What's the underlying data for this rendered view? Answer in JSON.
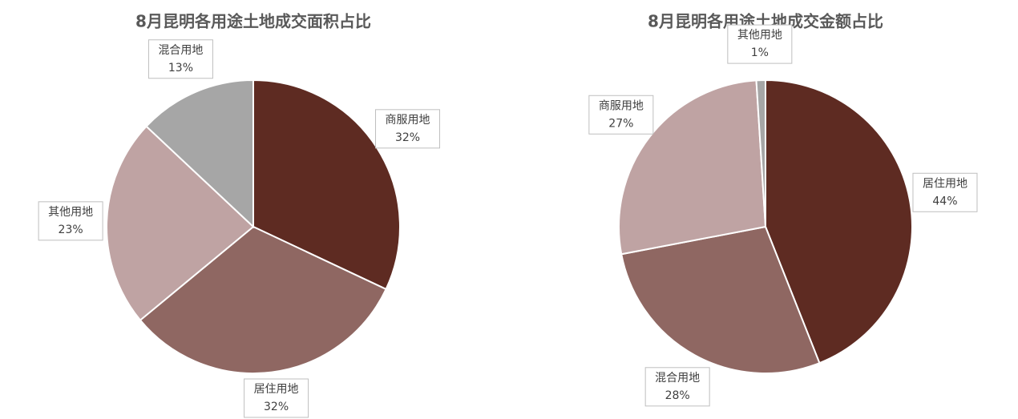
{
  "chart_data": [
    {
      "type": "pie",
      "title": "8月昆明各用途土地成交面积占比",
      "categories": [
        "商服用地",
        "居住用地",
        "其他用地",
        "混合用地"
      ],
      "values": [
        32,
        32,
        23,
        13
      ],
      "value_labels": [
        "32%",
        "32%",
        "23%",
        "13%"
      ],
      "colors": [
        "#5e2b22",
        "#8f6762",
        "#bfa3a3",
        "#a6a6a6"
      ]
    },
    {
      "type": "pie",
      "title": "8月昆明各用途土地成交金额占比",
      "categories": [
        "居住用地",
        "混合用地",
        "商服用地",
        "其他用地"
      ],
      "values": [
        44,
        28,
        27,
        1
      ],
      "value_labels": [
        "44%",
        "28%",
        "27%",
        "1%"
      ],
      "colors": [
        "#5e2b22",
        "#8f6762",
        "#bfa3a3",
        "#a6a6a6"
      ]
    }
  ]
}
